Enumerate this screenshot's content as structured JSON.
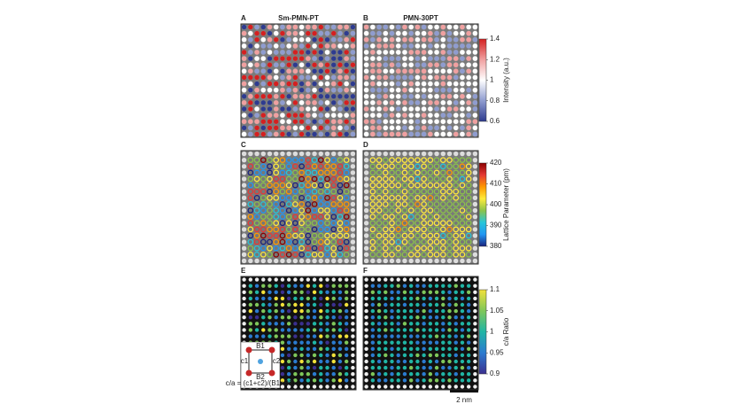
{
  "panels": [
    {
      "letter": "A",
      "title": "Sm-PMN-PT"
    },
    {
      "letter": "B",
      "title": "PMN-30PT"
    },
    {
      "letter": "C"
    },
    {
      "letter": "D"
    },
    {
      "letter": "E"
    },
    {
      "letter": "F"
    }
  ],
  "colorbars": [
    {
      "label": "Intensity (a.u.)",
      "lim": [
        0.6,
        1.4
      ],
      "ticks": [
        1.4,
        1.2,
        1,
        0.8,
        0.6
      ],
      "colors": [
        "#2e3b8f",
        "#8f9ccf",
        "#ffffff",
        "#f0a0a0",
        "#d42020"
      ]
    },
    {
      "label": "Lattice Parameter (pm)",
      "lim": [
        380,
        420
      ],
      "ticks": [
        420,
        410,
        400,
        390,
        380
      ],
      "colors": [
        "#1a237e",
        "#2196f3",
        "#26c6da",
        "#8bc34a",
        "#ffeb3b",
        "#ff9800",
        "#e53935",
        "#8b0000"
      ]
    },
    {
      "label": "c/a Ratio",
      "lim": [
        0.9,
        1.1
      ],
      "ticks": [
        1.1,
        1.05,
        1,
        0.95,
        0.9
      ],
      "colors": [
        "#3b2f8f",
        "#2b7bd0",
        "#20b5a5",
        "#7fc75a",
        "#f2e13a"
      ]
    }
  ],
  "inset": {
    "top": "B1",
    "left": "c1",
    "right": "c2",
    "bottom": "B2",
    "formula": "c/a = (c1+c2)/(B1+B2)"
  },
  "scale_bar": {
    "label": "2 nm"
  }
}
